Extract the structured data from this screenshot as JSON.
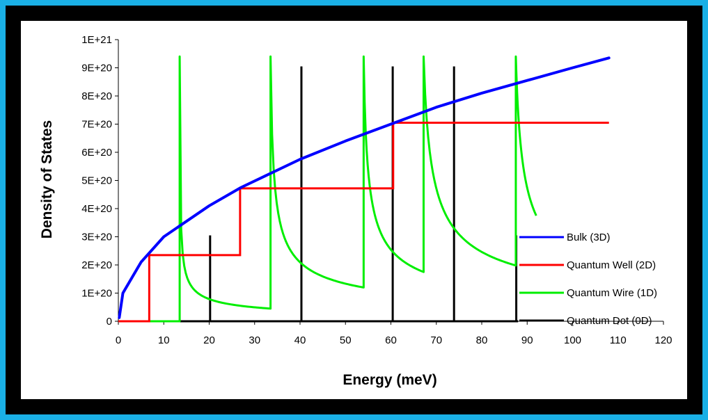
{
  "chart_data": {
    "type": "line",
    "title": "",
    "xlabel": "Energy (meV)",
    "ylabel": "Density of States",
    "xlim": [
      0,
      120
    ],
    "ylim": [
      0,
      1e+21
    ],
    "xticks": [
      "0",
      "10",
      "20",
      "30",
      "40",
      "50",
      "60",
      "70",
      "80",
      "90",
      "100",
      "110",
      "120"
    ],
    "yticks": [
      "0",
      "1E+20",
      "2E+20",
      "3E+20",
      "4E+20",
      "5E+20",
      "6E+20",
      "7E+20",
      "8E+20",
      "9E+20",
      "1E+21"
    ],
    "grid": false,
    "legend_position": "right",
    "series": [
      {
        "name": "Bulk (3D)",
        "color": "#0000ff",
        "kind": "sqrt",
        "points": [
          [
            0.2,
            1.3e+19
          ],
          [
            1,
            1e+20
          ],
          [
            5,
            2.1e+20
          ],
          [
            10,
            3e+20
          ],
          [
            20,
            4.1e+20
          ],
          [
            27,
            4.75e+20
          ],
          [
            40,
            5.75e+20
          ],
          [
            50,
            6.4e+20
          ],
          [
            60,
            7e+20
          ],
          [
            70,
            7.6e+20
          ],
          [
            80,
            8.1e+20
          ],
          [
            90,
            8.55e+20
          ],
          [
            100,
            9e+20
          ],
          [
            108,
            9.35e+20
          ]
        ]
      },
      {
        "name": "Quantum Well (2D)",
        "color": "#ff0000",
        "kind": "steps",
        "points": [
          [
            0,
            0
          ],
          [
            6.8,
            0
          ],
          [
            6.8,
            2.35e+20
          ],
          [
            26.8,
            2.35e+20
          ],
          [
            26.8,
            4.72e+20
          ],
          [
            60.5,
            4.72e+20
          ],
          [
            60.5,
            7.05e+20
          ],
          [
            108,
            7.05e+20
          ]
        ]
      },
      {
        "name": "Quantum Wire (1D)",
        "color": "#00ee00",
        "kind": "peaks",
        "onsets": [
          13.5,
          33.5,
          54,
          67.2,
          87.5
        ],
        "peak": 9.4e+20,
        "ends": [
          [
            33.5,
            4.5e+19
          ],
          [
            54,
            1.2e+20
          ],
          [
            67.2,
            1.75e+20
          ],
          [
            87.5,
            1.98e+20
          ],
          [
            92,
            3.75e+20
          ]
        ],
        "baseline": [
          [
            0,
            0
          ],
          [
            13.5,
            0
          ]
        ]
      },
      {
        "name": "Quantum Dot (0D)",
        "color": "#000000",
        "kind": "spikes",
        "points": [
          [
            20.2,
            3.05e+20
          ],
          [
            40.3,
            9.05e+20
          ],
          [
            60.4,
            9.05e+20
          ],
          [
            73.9,
            9.05e+20
          ],
          [
            87.6,
            3.05e+20
          ]
        ],
        "baseline": [
          [
            0,
            0
          ],
          [
            88,
            0
          ]
        ]
      }
    ]
  }
}
